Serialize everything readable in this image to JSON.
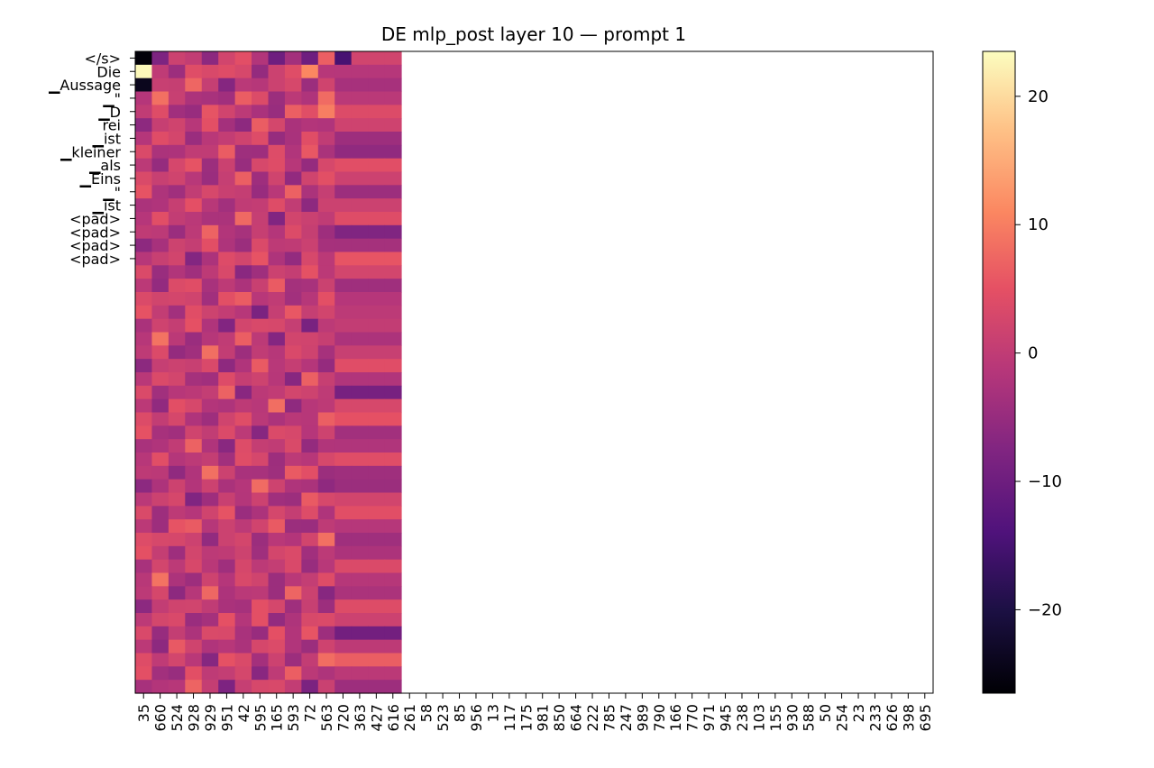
{
  "chart_data": {
    "type": "heatmap",
    "title": "DE mlp_post layer 10 — prompt 1",
    "xlabel": "",
    "ylabel": "",
    "colormap": "magma",
    "value_range": [
      -26.5,
      23.5
    ],
    "x_tick_labels": [
      "35",
      "660",
      "524",
      "928",
      "929",
      "951",
      "42",
      "595",
      "165",
      "593",
      "72",
      "563",
      "720",
      "363",
      "427",
      "616",
      "261",
      "58",
      "523",
      "85",
      "956",
      "13",
      "117",
      "175",
      "981",
      "850",
      "664",
      "222",
      "785",
      "247",
      "989",
      "790",
      "166",
      "770",
      "971",
      "945",
      "238",
      "103",
      "155",
      "930",
      "588",
      "50",
      "254",
      "23",
      "233",
      "626",
      "398",
      "695"
    ],
    "y_tick_labels": [
      "</s>",
      "Die",
      "▁Aussage",
      "▁\"",
      "▁D",
      "rei",
      "▁ist",
      "▁kleiner",
      "▁als",
      "▁Eins",
      "▁\"",
      "▁ist",
      "<pad>",
      "<pad>",
      "<pad>",
      "<pad>"
    ],
    "n_rows": 48,
    "n_cols": 48,
    "n_filled_cols": 16,
    "highlight_cells": [
      {
        "row": 0,
        "col": 0,
        "value": -26
      },
      {
        "row": 1,
        "col": 0,
        "value": 23
      },
      {
        "row": 2,
        "col": 0,
        "value": -24
      },
      {
        "row": 0,
        "col": 12,
        "value": -15
      },
      {
        "row": 0,
        "col": 1,
        "value": -8
      },
      {
        "row": 0,
        "col": 8,
        "value": -10
      },
      {
        "row": 0,
        "col": 10,
        "value": -10
      },
      {
        "row": 1,
        "col": 10,
        "value": 11
      },
      {
        "row": 3,
        "col": 11,
        "value": 8
      },
      {
        "row": 4,
        "col": 11,
        "value": 10
      }
    ],
    "colorbar": {
      "ticks": [
        20,
        10,
        0,
        -10,
        -20
      ],
      "tick_labels": [
        "20",
        "10",
        "0",
        "−10",
        "−20"
      ]
    },
    "grid": false
  }
}
